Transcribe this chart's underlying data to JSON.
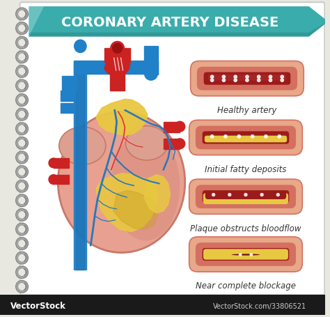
{
  "title": "CORONARY ARTERY DISEASE",
  "title_bg_color": "#3aacac",
  "title_text_color": "#ffffff",
  "notebook_bg": "#e8e8e0",
  "page_bg": "#ffffff",
  "spiral_color": "#888888",
  "footer_bg": "#1a1a1a",
  "footer_text": "VectorStock",
  "footer_text2": "VectorStock.com/33806521",
  "artery_labels": [
    "Healthy artery",
    "Initial fatty deposits",
    "Plaque obstructs bloodflow",
    "Near complete blockage"
  ],
  "label_color": "#333333",
  "label_fontsize": 8.5,
  "artery_outer_color": "#e8a88a",
  "artery_wall_color": "#d47060",
  "lumen_color": "#9b1a1a",
  "lumen_texture": "#7a1010",
  "plaque_color": "#e8c840",
  "plaque_dark": "#c8a820",
  "heart_body_color": "#e8a090",
  "heart_body_shadow": "#c87868",
  "heart_blue_color": "#2080c8",
  "heart_blue_dark": "#1060a0",
  "heart_red_color": "#cc2222",
  "heart_red_dark": "#991111",
  "heart_fat_color": "#e8c840",
  "heart_fat_shadow": "#c8a020",
  "vein_blue": "#2878b8",
  "vein_red": "#cc2222",
  "white": "#ffffff"
}
